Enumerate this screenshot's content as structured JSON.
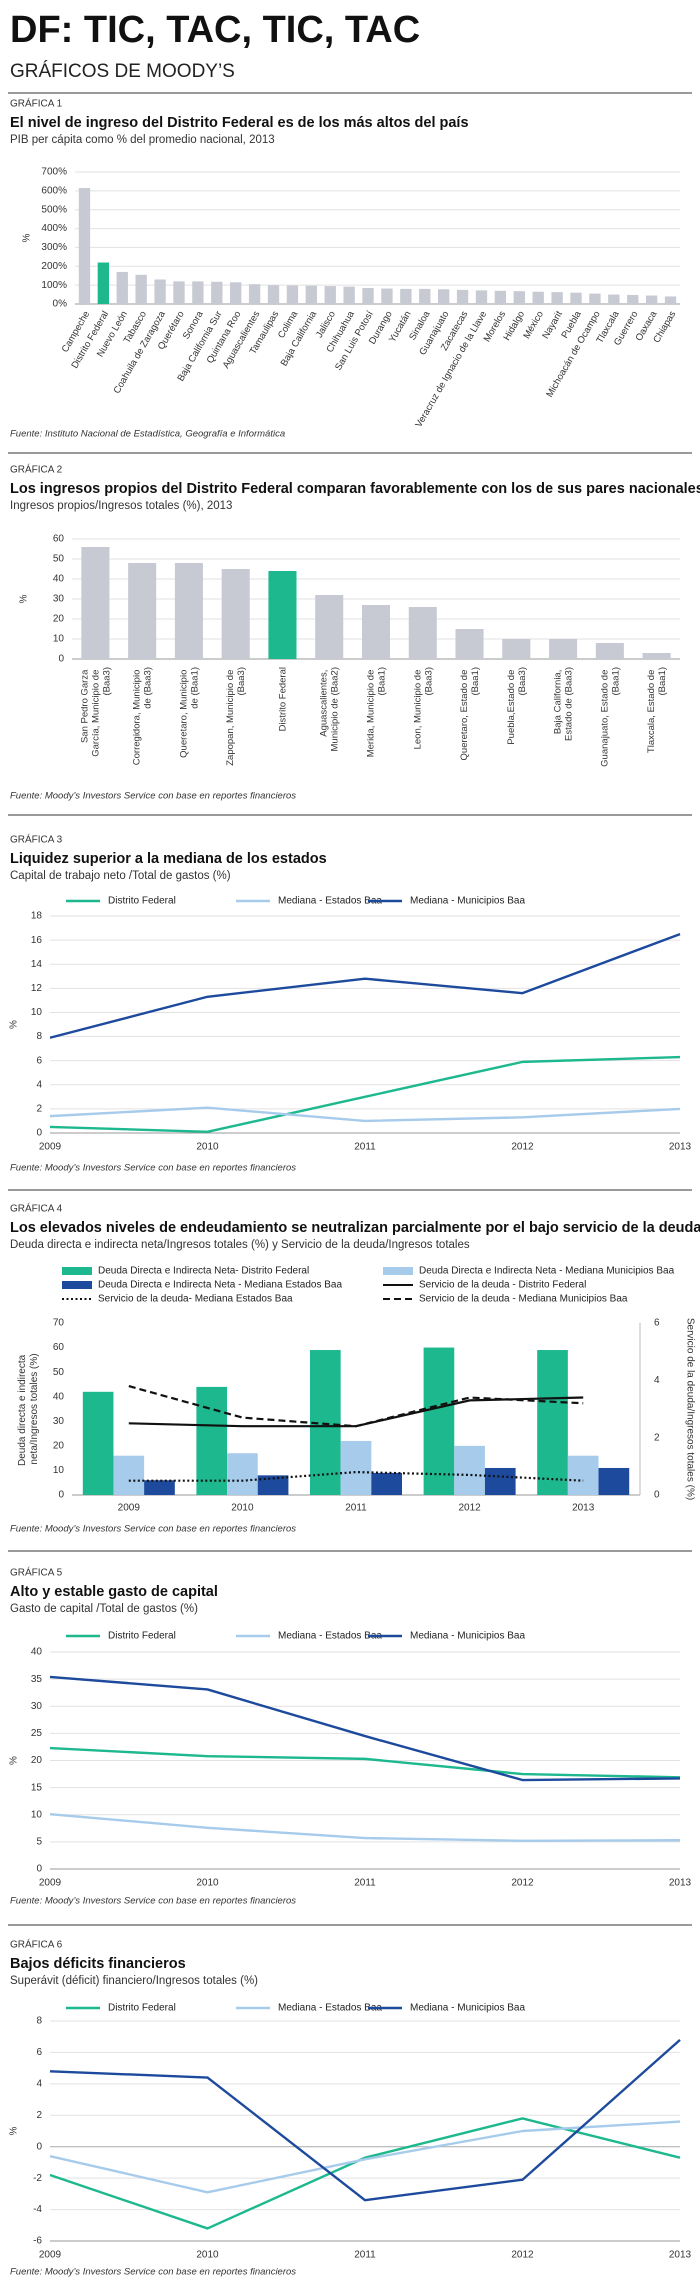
{
  "header": {
    "title": "DF: TIC, TAC, TIC, TAC",
    "subtitle": "GRÁFICOS DE MOODY’S"
  },
  "chart_data": [
    {
      "type": "bar",
      "label": "GRÁFICA 1",
      "title": "El nivel de ingreso del Distrito Federal es de los más altos del país",
      "subtitle": "PIB per cápita como % del promedio nacional, 2013",
      "source": "Fuente: Instituto Nacional de Estadística, Geografía e Informática",
      "ylabel": "%",
      "categories": [
        "Campeche",
        "Distrito Federal",
        "Nuevo León",
        "Tabasco",
        "Coahuila de Zaragoza",
        "Querétaro",
        "Sonora",
        "Baja California Sur",
        "Quintana Roo",
        "Aguascalientes",
        "Tamaulipas",
        "Colima",
        "Baja California",
        "Jalisco",
        "Chihuahua",
        "San Luis Potosí",
        "Durango",
        "Yucatán",
        "Sinaloa",
        "Guanajuato",
        "Zacatecas",
        "Veracruz de Ignacio de la Llave",
        "Morelos",
        "Hidalgo",
        "México",
        "Nayarit",
        "Puebla",
        "Michoacán de Ocampo",
        "Tlaxcala",
        "Guerrero",
        "Oaxaca",
        "Chiapas"
      ],
      "values": [
        615,
        220,
        170,
        155,
        130,
        120,
        120,
        118,
        115,
        105,
        100,
        98,
        97,
        95,
        92,
        85,
        82,
        80,
        80,
        78,
        75,
        72,
        70,
        68,
        65,
        63,
        60,
        55,
        50,
        48,
        45,
        40
      ],
      "colors": [
        "#c7cad3",
        "#1db88e",
        "#c7cad3",
        "#c7cad3",
        "#c7cad3",
        "#c7cad3",
        "#c7cad3",
        "#c7cad3",
        "#c7cad3",
        "#c7cad3",
        "#c7cad3",
        "#c7cad3",
        "#c7cad3",
        "#c7cad3",
        "#c7cad3",
        "#c7cad3",
        "#c7cad3",
        "#c7cad3",
        "#c7cad3",
        "#c7cad3",
        "#c7cad3",
        "#c7cad3",
        "#c7cad3",
        "#c7cad3",
        "#c7cad3",
        "#c7cad3",
        "#c7cad3",
        "#c7cad3",
        "#c7cad3",
        "#c7cad3",
        "#c7cad3",
        "#c7cad3"
      ],
      "ylim": [
        0,
        700
      ],
      "yticks": [
        {
          "value": 0,
          "label": "0%"
        },
        {
          "value": 100,
          "label": "100%"
        },
        {
          "value": 200,
          "label": "200%"
        },
        {
          "value": 300,
          "label": "300%"
        },
        {
          "value": 400,
          "label": "400%"
        },
        {
          "value": 500,
          "label": "500%"
        },
        {
          "value": 600,
          "label": "600%"
        },
        {
          "value": 700,
          "label": "700%"
        }
      ],
      "grid": true
    },
    {
      "type": "bar",
      "label": "GRÁFICA 2",
      "title": "Los ingresos propios del Distrito Federal comparan favorablemente con los de sus pares nacionales",
      "subtitle": "Ingresos propios/Ingresos totales (%), 2013",
      "source": "Fuente:  Moody’s Investors Service con base en reportes financieros",
      "ylabel": "%",
      "categories": [
        "San Pedro Garza García, Municipio de (Baa3)",
        "Corregidora, Municipio de (Baa3)",
        "Queretaro, Municipio de (Baa1)",
        "Zapopan, Municipio de (Baa3)",
        "Distrito Federal",
        "Aguascalientes, Municipio de (Baa2)",
        "Merida, Municipio de (Baa1)",
        "Leon, Municipio de (Baa3)",
        "Queretaro, Estado de (Baa1)",
        "Puebla,Estado de (Baa3)",
        "Baja California, Estado de (Baa3)",
        "Guanajuato, Estado de (Baa1)",
        "Tlaxcala, Estado de (Baa1)"
      ],
      "values": [
        56,
        48,
        48,
        45,
        44,
        32,
        27,
        26,
        15,
        10,
        10,
        8,
        3
      ],
      "colors": [
        "#c7cad3",
        "#c7cad3",
        "#c7cad3",
        "#c7cad3",
        "#1db88e",
        "#c7cad3",
        "#c7cad3",
        "#c7cad3",
        "#c7cad3",
        "#c7cad3",
        "#c7cad3",
        "#c7cad3",
        "#c7cad3"
      ],
      "ylim": [
        0,
        60
      ],
      "yticks": [
        0,
        10,
        20,
        30,
        40,
        50,
        60
      ],
      "grid": true
    },
    {
      "type": "line",
      "label": "GRÁFICA 3",
      "title": "Liquidez superior a la mediana de los estados",
      "subtitle": "Capital de trabajo neto /Total de gastos (%)",
      "source": "Fuente:  Moody’s Investors Service con base en reportes financieros",
      "ylabel": "%",
      "x": [
        2009,
        2010,
        2011,
        2012,
        2013
      ],
      "xlim": [
        2009,
        2013
      ],
      "xticks": [
        2009,
        2010,
        2011,
        2012,
        2013
      ],
      "series": [
        {
          "name": "Distrito Federal",
          "color": "#1db88e",
          "values": [
            0.5,
            0.1,
            3.0,
            5.9,
            6.3
          ]
        },
        {
          "name": "Mediana - Estados Baa",
          "color": "#a6cbeb",
          "values": [
            1.4,
            2.1,
            1.0,
            1.3,
            2.0
          ]
        },
        {
          "name": "Mediana - Municipios Baa",
          "color": "#1d4a9c",
          "values": [
            7.9,
            11.3,
            12.8,
            11.6,
            16.5
          ]
        }
      ],
      "ylim": [
        0,
        18
      ],
      "yticks": [
        0,
        2,
        4,
        6,
        8,
        10,
        12,
        14,
        16,
        18
      ],
      "grid": true
    },
    {
      "type": "combo",
      "label": "GRÁFICA 4",
      "title": "Los elevados niveles de endeudamiento se neutralizan parcialmente por el bajo servicio de la deuda",
      "subtitle": "Deuda directa e indirecta neta/Ingresos totales (%) y Servicio de la deuda/Ingresos totales",
      "source": "Fuente:  Moody’s Investors Service con base en reportes financieros",
      "ylabel": "Deuda directa e indirecta neta/Ingresos totales (%)",
      "y2label": "Servicio de la deuda/Ingresos totales (%)",
      "categories": [
        "2009",
        "2010",
        "2011",
        "2012",
        "2013"
      ],
      "series": [
        {
          "name": "Deuda Directa e Indirecta Neta- Distrito  Federal",
          "type": "bar",
          "color": "#1db88e",
          "values": [
            42,
            44,
            59,
            60,
            59
          ]
        },
        {
          "name": "Deuda Directa e Indirecta Neta  - Mediana Municipios Baa",
          "type": "bar",
          "color": "#a6cbeb",
          "values": [
            16,
            17,
            22,
            20,
            16
          ]
        },
        {
          "name": "Deuda Directa e Indirecta Neta  - Mediana Estados Baa",
          "type": "bar",
          "color": "#1d4a9c",
          "values": [
            6,
            8,
            9,
            11,
            11
          ]
        },
        {
          "name": "Servicio de la deuda - Distrito  Federal",
          "type": "line",
          "axis": "y2",
          "dash": "solid",
          "color": "#111111",
          "values": [
            2.5,
            2.4,
            2.4,
            3.3,
            3.4
          ]
        },
        {
          "name": "Servicio de la deuda- Mediana Estados Baa",
          "type": "line",
          "axis": "y2",
          "dash": "dotted",
          "color": "#111111",
          "values": [
            0.5,
            0.5,
            0.8,
            0.7,
            0.5
          ]
        },
        {
          "name": "Servicio de la deuda - Mediana Municipios Baa",
          "type": "line",
          "axis": "y2",
          "dash": "dashed",
          "color": "#111111",
          "values": [
            3.8,
            2.7,
            2.4,
            3.4,
            3.2
          ]
        }
      ],
      "ylim": [
        0,
        70
      ],
      "yticks": [
        0,
        10,
        20,
        30,
        40,
        50,
        60,
        70
      ],
      "y2lim": [
        0,
        6
      ],
      "y2ticks": [
        0,
        2,
        4,
        6
      ],
      "grid": false
    },
    {
      "type": "line",
      "label": "GRÁFICA 5",
      "title": "Alto y estable gasto de capital",
      "subtitle": "Gasto de capital /Total de gastos (%)",
      "source": "Fuente:  Moody’s Investors Service con base en reportes financieros",
      "ylabel": "%",
      "x": [
        2009,
        2010,
        2011,
        2012,
        2013
      ],
      "xlim": [
        2009,
        2013
      ],
      "xticks": [
        2009,
        2010,
        2011,
        2012,
        2013
      ],
      "series": [
        {
          "name": "Distrito Federal",
          "color": "#1db88e",
          "values": [
            22.3,
            20.8,
            20.3,
            17.5,
            16.9
          ]
        },
        {
          "name": "Mediana - Estados Baa",
          "color": "#a6cbeb",
          "values": [
            10.1,
            7.6,
            5.7,
            5.2,
            5.3
          ]
        },
        {
          "name": "Mediana - Municipios Baa",
          "color": "#1d4a9c",
          "values": [
            35.4,
            33.1,
            24.5,
            16.4,
            16.7
          ]
        }
      ],
      "ylim": [
        0,
        40
      ],
      "yticks": [
        0,
        5,
        10,
        15,
        20,
        25,
        30,
        35,
        40
      ],
      "grid": true
    },
    {
      "type": "line",
      "label": "GRÁFICA 6",
      "title": "Bajos déficits financieros",
      "subtitle": "Superávit (déficit) financiero/Ingresos totales (%)",
      "source": "Fuente:  Moody’s Investors Service con base en reportes financieros",
      "ylabel": "%",
      "x": [
        2009,
        2010,
        2011,
        2012,
        2013
      ],
      "xlim": [
        2009,
        2013
      ],
      "xticks": [
        2009,
        2010,
        2011,
        2012,
        2013
      ],
      "series": [
        {
          "name": "Distrito Federal",
          "color": "#1db88e",
          "values": [
            -1.8,
            -5.2,
            -0.7,
            1.8,
            -0.7
          ]
        },
        {
          "name": "Mediana - Estados Baa",
          "color": "#a6cbeb",
          "values": [
            -0.6,
            -2.9,
            -0.8,
            1.0,
            1.6
          ]
        },
        {
          "name": "Mediana - Municipios Baa",
          "color": "#1d4a9c",
          "values": [
            4.8,
            4.4,
            -3.4,
            -2.1,
            6.8
          ]
        }
      ],
      "ylim": [
        -6,
        8
      ],
      "yticks": [
        -6,
        -4,
        -2,
        0,
        2,
        4,
        6,
        8
      ],
      "grid": true
    }
  ]
}
